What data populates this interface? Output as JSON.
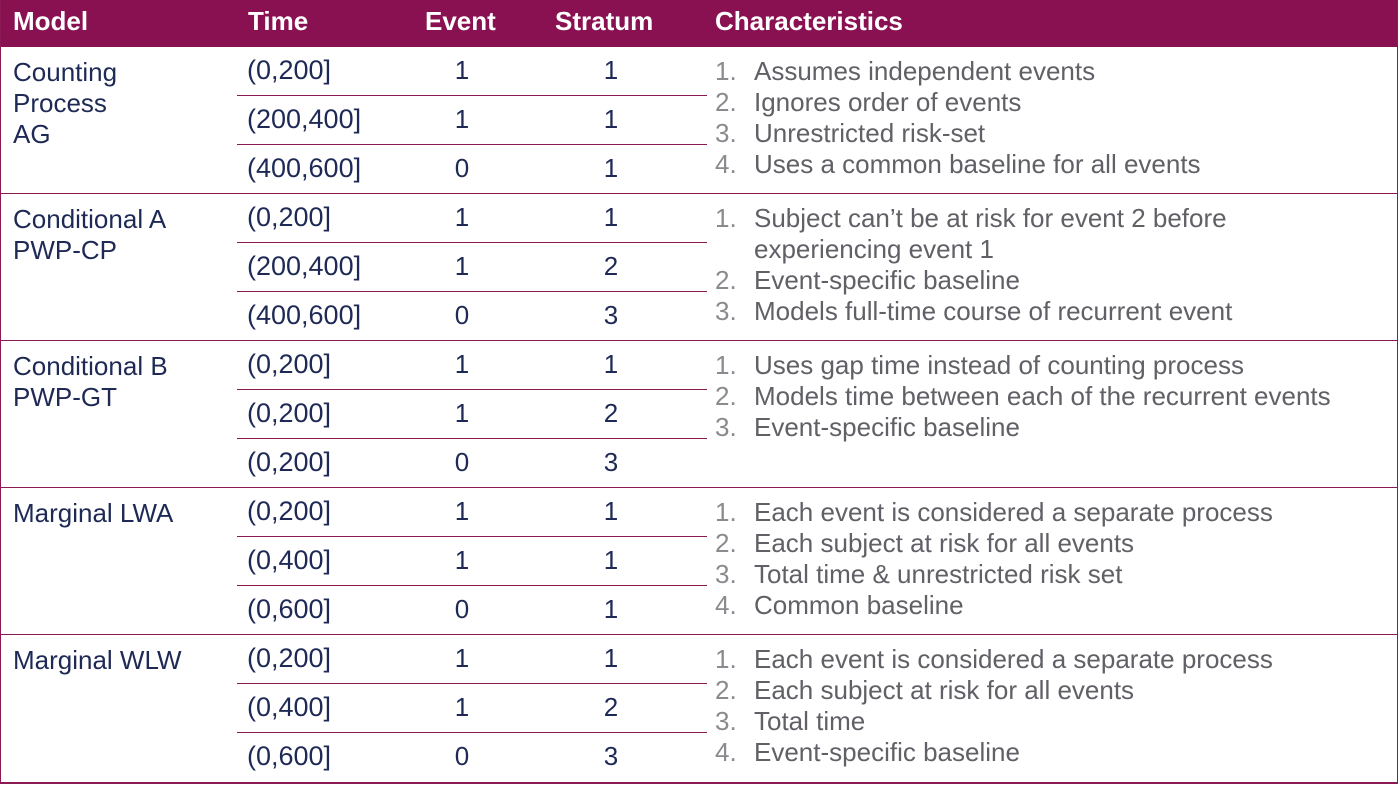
{
  "header": {
    "model": "Model",
    "time": "Time",
    "event": "Event",
    "stratum": "Stratum",
    "characteristics": "Characteristics"
  },
  "groups": [
    {
      "model": "Counting\nProcess\nAG",
      "rows": [
        {
          "time": "(0,200]",
          "event": "1",
          "stratum": "1"
        },
        {
          "time": "(200,400]",
          "event": "1",
          "stratum": "1"
        },
        {
          "time": "(400,600]",
          "event": "0",
          "stratum": "1"
        }
      ],
      "characteristics": [
        {
          "n": "1.",
          "text": "Assumes independent events"
        },
        {
          "n": "2.",
          "text": "Ignores order of events"
        },
        {
          "n": "3.",
          "text": "Unrestricted risk-set"
        },
        {
          "n": "4.",
          "text": "Uses a common baseline for all events"
        }
      ]
    },
    {
      "model": "Conditional A\nPWP-CP",
      "rows": [
        {
          "time": "(0,200]",
          "event": "1",
          "stratum": "1"
        },
        {
          "time": "(200,400]",
          "event": "1",
          "stratum": "2"
        },
        {
          "time": "(400,600]",
          "event": "0",
          "stratum": "3"
        }
      ],
      "characteristics": [
        {
          "n": "1.",
          "text": "Subject can’t be at risk for event 2 before experiencing event 1"
        },
        {
          "n": "2.",
          "text": "Event-specific baseline"
        },
        {
          "n": "3.",
          "text": "Models full-time course of recurrent event"
        }
      ]
    },
    {
      "model": "Conditional B\nPWP-GT",
      "rows": [
        {
          "time": "(0,200]",
          "event": "1",
          "stratum": "1"
        },
        {
          "time": "(0,200]",
          "event": "1",
          "stratum": "2"
        },
        {
          "time": "(0,200]",
          "event": "0",
          "stratum": "3"
        }
      ],
      "characteristics": [
        {
          "n": "1.",
          "text": "Uses gap time instead of counting process"
        },
        {
          "n": "2.",
          "text": "Models time between each of the recurrent events"
        },
        {
          "n": "3.",
          "text": "Event-specific baseline"
        }
      ]
    },
    {
      "model": "Marginal LWA",
      "rows": [
        {
          "time": "(0,200]",
          "event": "1",
          "stratum": "1"
        },
        {
          "time": "(0,400]",
          "event": "1",
          "stratum": "1"
        },
        {
          "time": "(0,600]",
          "event": "0",
          "stratum": "1"
        }
      ],
      "characteristics": [
        {
          "n": "1.",
          "text": "Each event is considered a separate process"
        },
        {
          "n": "2.",
          "text": "Each subject at risk for all events"
        },
        {
          "n": "3.",
          "text": "Total time & unrestricted risk set"
        },
        {
          "n": "4.",
          "text": "Common baseline"
        }
      ]
    },
    {
      "model": "Marginal WLW",
      "rows": [
        {
          "time": "(0,200]",
          "event": "1",
          "stratum": "1"
        },
        {
          "time": "(0,400]",
          "event": "1",
          "stratum": "2"
        },
        {
          "time": "(0,600]",
          "event": "0",
          "stratum": "3"
        }
      ],
      "characteristics": [
        {
          "n": "1.",
          "text": "Each event is considered a separate process"
        },
        {
          "n": "2.",
          "text": "Each subject at risk for all events"
        },
        {
          "n": "3.",
          "text": "Total time"
        },
        {
          "n": "4.",
          "text": "Event-specific baseline"
        }
      ]
    }
  ]
}
